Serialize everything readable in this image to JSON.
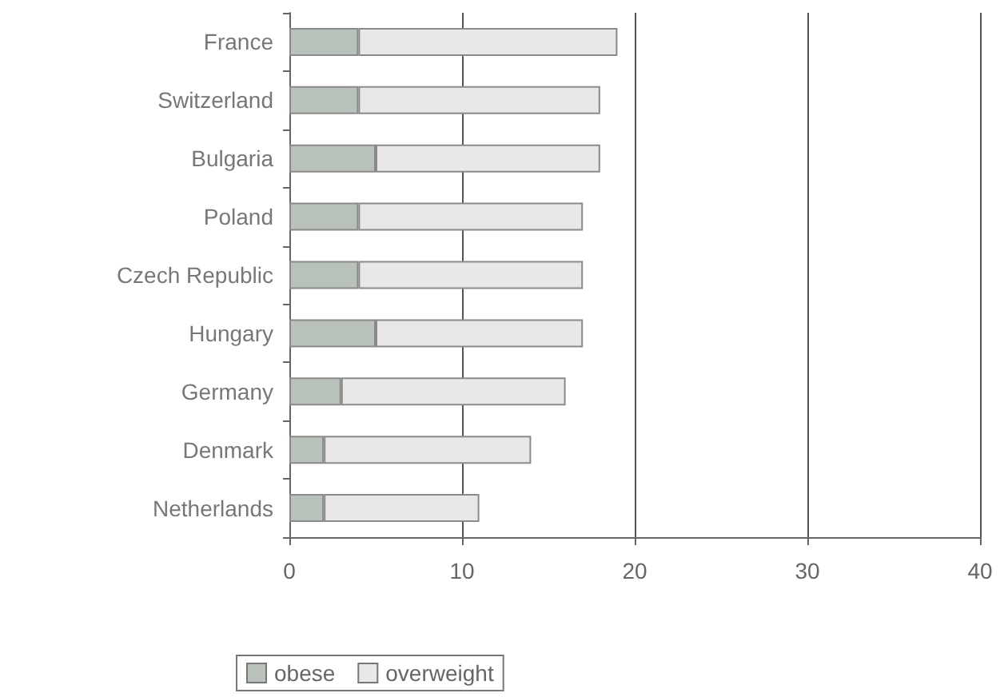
{
  "chart_data": {
    "type": "bar",
    "orientation": "horizontal",
    "stacked": true,
    "categories": [
      "France",
      "Switzerland",
      "Bulgaria",
      "Poland",
      "Czech Republic",
      "Hungary",
      "Germany",
      "Denmark",
      "Netherlands"
    ],
    "series": [
      {
        "name": "obese",
        "color": "#b9c1bb",
        "values": [
          4,
          4,
          5,
          4,
          4,
          5,
          3,
          2,
          2
        ]
      },
      {
        "name": "overweight",
        "color": "#e8e8e8",
        "values": [
          15,
          14,
          13,
          13,
          13,
          12,
          13,
          12,
          9
        ]
      }
    ],
    "xlim": [
      0,
      40
    ],
    "xticks": [
      0,
      10,
      20,
      30,
      40
    ],
    "grid": "x",
    "legend": "bottom left"
  }
}
